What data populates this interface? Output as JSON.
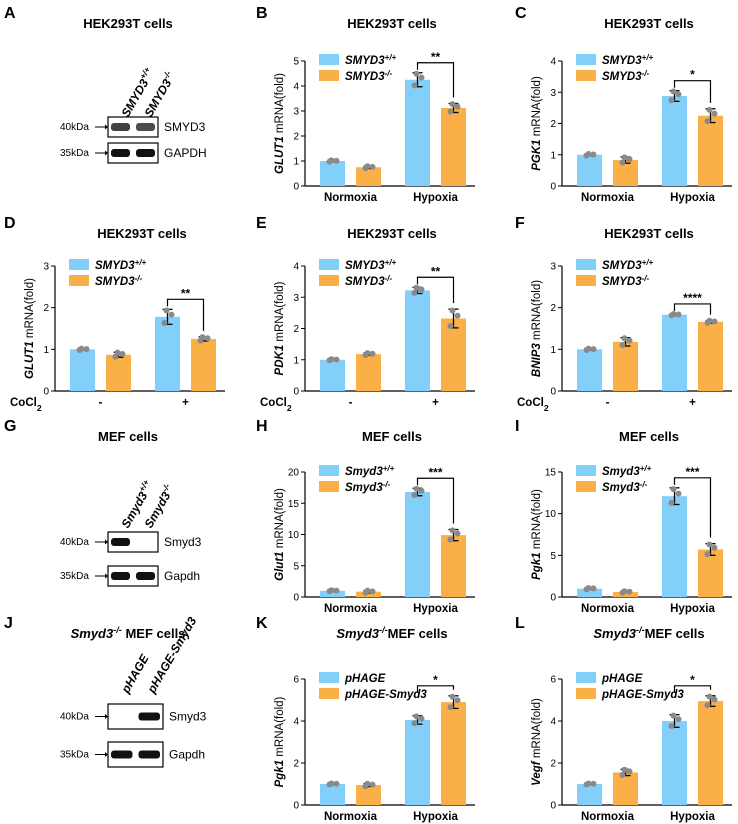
{
  "figure": {
    "colors": {
      "wt": "#82CFFA",
      "ko": "#FBAF47",
      "dot": "#8a8a8a",
      "band": "#111111"
    },
    "blots": [
      {
        "letter": "A",
        "title": "HEK293T cells",
        "lanes": [
          "SMYD3+/+",
          "SMYD3-/-"
        ],
        "rows": [
          {
            "label": "SMYD3",
            "kda": "40kDa",
            "bands": [
              0.8,
              0.75
            ]
          },
          {
            "label": "GAPDH",
            "kda": "35kDa",
            "bands": [
              1,
              1
            ]
          }
        ]
      },
      {
        "letter": "G",
        "title": "MEF cells",
        "lanes": [
          "Smyd3+/+",
          "Smyd3-/-"
        ],
        "rows": [
          {
            "label": "Smyd3",
            "kda": "40kDa",
            "bands": [
              1,
              0
            ]
          },
          {
            "label": "Gapdh",
            "kda": "35kDa",
            "bands": [
              1,
              1
            ]
          }
        ]
      },
      {
        "letter": "J",
        "title": "Smyd3-/- MEF cells",
        "lanes": [
          "pHAGE",
          "pHAGE-Smyd3"
        ],
        "rows": [
          {
            "label": "Smyd3",
            "kda": "40kDa",
            "bands": [
              0,
              1
            ]
          },
          {
            "label": "Gapdh",
            "kda": "35kDa",
            "bands": [
              1,
              1
            ]
          }
        ]
      }
    ]
  },
  "chart_data": [
    {
      "panel": "B",
      "type": "bar",
      "title": "HEK293T cells",
      "ylabel_gene": "GLUT1",
      "ylabel_rest": " mRNA(fold)",
      "categories": [
        "Normoxia",
        "Hypoxia"
      ],
      "ylim": [
        0,
        5
      ],
      "yticks": [
        0,
        1,
        2,
        3,
        4,
        5
      ],
      "series": [
        {
          "name": "SMYD3+/+",
          "values": [
            1.0,
            4.25
          ],
          "errors": [
            0.03,
            0.28
          ]
        },
        {
          "name": "SMYD3-/-",
          "values": [
            0.75,
            3.12
          ],
          "errors": [
            0.05,
            0.18
          ]
        }
      ],
      "significance": {
        "category": "Hypoxia",
        "label": "**"
      }
    },
    {
      "panel": "C",
      "type": "bar",
      "title": "HEK293T cells",
      "ylabel_gene": "PGK1",
      "ylabel_rest": " mRNA(fold)",
      "categories": [
        "Normoxia",
        "Hypoxia"
      ],
      "ylim": [
        0,
        4
      ],
      "yticks": [
        0,
        1,
        2,
        3,
        4
      ],
      "series": [
        {
          "name": "SMYD3+/+",
          "values": [
            1.0,
            2.88
          ],
          "errors": [
            0.03,
            0.17
          ]
        },
        {
          "name": "SMYD3-/-",
          "values": [
            0.83,
            2.25
          ],
          "errors": [
            0.1,
            0.22
          ]
        }
      ],
      "significance": {
        "category": "Hypoxia",
        "label": "*"
      }
    },
    {
      "panel": "D",
      "type": "bar",
      "title": "HEK293T cells",
      "ylabel_gene": "GLUT1",
      "ylabel_rest": " mRNA(fold)",
      "categories": [
        "-",
        "+"
      ],
      "xprefix": "CoCl2",
      "ylim": [
        0,
        3
      ],
      "yticks": [
        0,
        1,
        2,
        3
      ],
      "series": [
        {
          "name": "SMYD3+/+",
          "values": [
            1.0,
            1.78
          ],
          "errors": [
            0.02,
            0.18
          ]
        },
        {
          "name": "SMYD3-/-",
          "values": [
            0.87,
            1.25
          ],
          "errors": [
            0.06,
            0.05
          ]
        }
      ],
      "significance": {
        "category": "+",
        "label": "**"
      }
    },
    {
      "panel": "E",
      "type": "bar",
      "title": "HEK293T cells",
      "ylabel_gene": "PDK1",
      "ylabel_rest": " mRNA(fold)",
      "categories": [
        "-",
        "+"
      ],
      "xprefix": "CoCl2",
      "ylim": [
        0,
        4
      ],
      "yticks": [
        0,
        1,
        2,
        3,
        4
      ],
      "series": [
        {
          "name": "SMYD3+/+",
          "values": [
            1.0,
            3.22
          ],
          "errors": [
            0.02,
            0.1
          ]
        },
        {
          "name": "SMYD3-/-",
          "values": [
            1.18,
            2.32
          ],
          "errors": [
            0.04,
            0.3
          ]
        }
      ],
      "significance": {
        "category": "+",
        "label": "**"
      }
    },
    {
      "panel": "F",
      "type": "bar",
      "title": "HEK293T cells",
      "ylabel_gene": "BNIP3",
      "ylabel_rest": " mRNA(fold)",
      "categories": [
        "-",
        "+"
      ],
      "xprefix": "CoCl2",
      "ylim": [
        0,
        3
      ],
      "yticks": [
        0,
        1,
        2,
        3
      ],
      "series": [
        {
          "name": "SMYD3+/+",
          "values": [
            1.0,
            1.83
          ],
          "errors": [
            0.02,
            0.02
          ]
        },
        {
          "name": "SMYD3-/-",
          "values": [
            1.18,
            1.66
          ],
          "errors": [
            0.1,
            0.03
          ]
        }
      ],
      "significance": {
        "category": "+",
        "label": "****"
      }
    },
    {
      "panel": "H",
      "type": "bar",
      "title": "MEF cells",
      "ylabel_gene": "Glut1",
      "ylabel_rest": " mRNA(fold)",
      "categories": [
        "Normoxia",
        "Hypoxia"
      ],
      "ylim": [
        0,
        20
      ],
      "yticks": [
        0,
        5,
        10,
        15,
        20
      ],
      "series": [
        {
          "name": "Smyd3+/+",
          "values": [
            1.0,
            16.8
          ],
          "errors": [
            0.1,
            0.6
          ]
        },
        {
          "name": "Smyd3-/-",
          "values": [
            0.85,
            9.9
          ],
          "errors": [
            0.2,
            0.9
          ]
        }
      ],
      "significance": {
        "category": "Hypoxia",
        "label": "***"
      }
    },
    {
      "panel": "I",
      "type": "bar",
      "title": "MEF cells",
      "ylabel_gene": "Pgk1",
      "ylabel_rest": " mRNA(fold)",
      "categories": [
        "Normoxia",
        "Hypoxia"
      ],
      "ylim": [
        0,
        15
      ],
      "yticks": [
        0,
        5,
        10,
        15
      ],
      "series": [
        {
          "name": "Smyd3+/+",
          "values": [
            1.0,
            12.1
          ],
          "errors": [
            0.1,
            1.0
          ]
        },
        {
          "name": "Smyd3-/-",
          "values": [
            0.6,
            5.7
          ],
          "errors": [
            0.1,
            0.7
          ]
        }
      ],
      "significance": {
        "category": "Hypoxia",
        "label": "***"
      }
    },
    {
      "panel": "K",
      "type": "bar",
      "title": "Smyd3-/-MEF cells",
      "ylabel_gene": "Pgk1",
      "ylabel_rest": " mRNA(fold)",
      "categories": [
        "Normoxia",
        "Hypoxia"
      ],
      "ylim": [
        0,
        6
      ],
      "yticks": [
        0,
        2,
        4,
        6
      ],
      "series": [
        {
          "name": "pHAGE",
          "values": [
            1.0,
            4.05
          ],
          "errors": [
            0.03,
            0.2
          ]
        },
        {
          "name": "pHAGE-Smyd3",
          "values": [
            0.95,
            4.9
          ],
          "errors": [
            0.07,
            0.3
          ]
        }
      ],
      "significance": {
        "category": "Hypoxia",
        "label": "*"
      }
    },
    {
      "panel": "L",
      "type": "bar",
      "title": "Smyd3-/-MEF cells",
      "ylabel_gene": "Vegf",
      "ylabel_rest": " mRNA(fold)",
      "categories": [
        "Normoxia",
        "Hypoxia"
      ],
      "ylim": [
        0,
        6
      ],
      "yticks": [
        0,
        2,
        4,
        6
      ],
      "series": [
        {
          "name": "pHAGE",
          "values": [
            1.0,
            4.0
          ],
          "errors": [
            0.03,
            0.3
          ]
        },
        {
          "name": "pHAGE-Smyd3",
          "values": [
            1.55,
            4.95
          ],
          "errors": [
            0.15,
            0.25
          ]
        }
      ],
      "significance": {
        "category": "Hypoxia",
        "label": "*"
      }
    }
  ]
}
